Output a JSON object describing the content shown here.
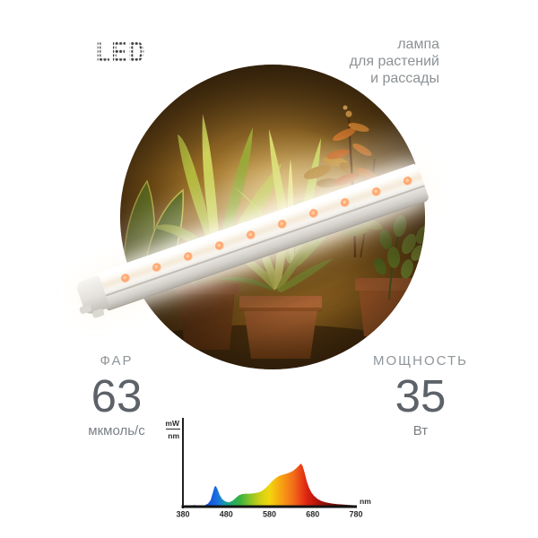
{
  "card": {
    "background": "#ffffff"
  },
  "header": {
    "logo_text": "LED",
    "tagline_lines": [
      "лампа",
      "для растений",
      "и рассады"
    ]
  },
  "photo": {
    "alt": "houseplants and seedlings lit by a white LED grow-light tube"
  },
  "specs": {
    "par": {
      "label": "ФАР",
      "value": "63",
      "unit": "мкмоль/с"
    },
    "power": {
      "label": "МОЩНОСТЬ",
      "value": "35",
      "unit": "Вт"
    }
  },
  "chart_data": {
    "type": "area",
    "title": "",
    "xlabel": "nm",
    "ylabel": "mW/nm",
    "ylabel_top": "mW",
    "ylabel_bottom": "nm",
    "x_ticks": [
      380,
      480,
      580,
      680,
      780
    ],
    "xlim": [
      380,
      780
    ],
    "ylim": [
      0,
      1
    ],
    "grid": false,
    "legend": "none",
    "points": [
      [
        380,
        0.015
      ],
      [
        392,
        0.018
      ],
      [
        400,
        0.03
      ],
      [
        407,
        0.035
      ],
      [
        414,
        0.025
      ],
      [
        422,
        0.022
      ],
      [
        430,
        0.03
      ],
      [
        438,
        0.07
      ],
      [
        444,
        0.15
      ],
      [
        449,
        0.32
      ],
      [
        453,
        0.46
      ],
      [
        456,
        0.48
      ],
      [
        460,
        0.4
      ],
      [
        465,
        0.27
      ],
      [
        471,
        0.17
      ],
      [
        478,
        0.12
      ],
      [
        486,
        0.1
      ],
      [
        494,
        0.13
      ],
      [
        502,
        0.2
      ],
      [
        509,
        0.26
      ],
      [
        516,
        0.29
      ],
      [
        524,
        0.3
      ],
      [
        534,
        0.3
      ],
      [
        544,
        0.31
      ],
      [
        554,
        0.33
      ],
      [
        562,
        0.36
      ],
      [
        570,
        0.42
      ],
      [
        578,
        0.5
      ],
      [
        586,
        0.59
      ],
      [
        594,
        0.66
      ],
      [
        602,
        0.71
      ],
      [
        610,
        0.74
      ],
      [
        618,
        0.76
      ],
      [
        626,
        0.79
      ],
      [
        634,
        0.83
      ],
      [
        642,
        0.89
      ],
      [
        648,
        0.95
      ],
      [
        652,
        1.0
      ],
      [
        656,
        0.96
      ],
      [
        661,
        0.8
      ],
      [
        666,
        0.6
      ],
      [
        671,
        0.45
      ],
      [
        677,
        0.33
      ],
      [
        683,
        0.25
      ],
      [
        691,
        0.18
      ],
      [
        700,
        0.13
      ],
      [
        710,
        0.1
      ],
      [
        722,
        0.075
      ],
      [
        736,
        0.058
      ],
      [
        752,
        0.045
      ],
      [
        766,
        0.036
      ],
      [
        780,
        0.03
      ]
    ],
    "spectrum_gradient": [
      {
        "pos": 0.0,
        "color": "#23237e"
      },
      {
        "pos": 0.08,
        "color": "#2733a8"
      },
      {
        "pos": 0.14,
        "color": "#1c4ed4"
      },
      {
        "pos": 0.18,
        "color": "#1463e6"
      },
      {
        "pos": 0.21,
        "color": "#1b7cd4"
      },
      {
        "pos": 0.245,
        "color": "#189aa6"
      },
      {
        "pos": 0.28,
        "color": "#22a968"
      },
      {
        "pos": 0.33,
        "color": "#38b23e"
      },
      {
        "pos": 0.385,
        "color": "#86c32a"
      },
      {
        "pos": 0.44,
        "color": "#c9cf17"
      },
      {
        "pos": 0.5,
        "color": "#f2d70d"
      },
      {
        "pos": 0.545,
        "color": "#f6b211"
      },
      {
        "pos": 0.59,
        "color": "#f79114"
      },
      {
        "pos": 0.64,
        "color": "#f26b19"
      },
      {
        "pos": 0.68,
        "color": "#ea4515"
      },
      {
        "pos": 0.715,
        "color": "#dc2511"
      },
      {
        "pos": 0.77,
        "color": "#b6150b"
      },
      {
        "pos": 0.84,
        "color": "#810e06"
      },
      {
        "pos": 1.0,
        "color": "#330a04"
      }
    ]
  },
  "colors": {
    "tagline_gray": "#8d9194",
    "spec_label_gray": "#90959a",
    "spec_value_gray": "#5d6268",
    "axis_black": "#1f1f1f",
    "logo_dots": "#3e3e3e",
    "led_dot_orange": "#ff9c62",
    "terracotta_pot": "#a96334"
  }
}
